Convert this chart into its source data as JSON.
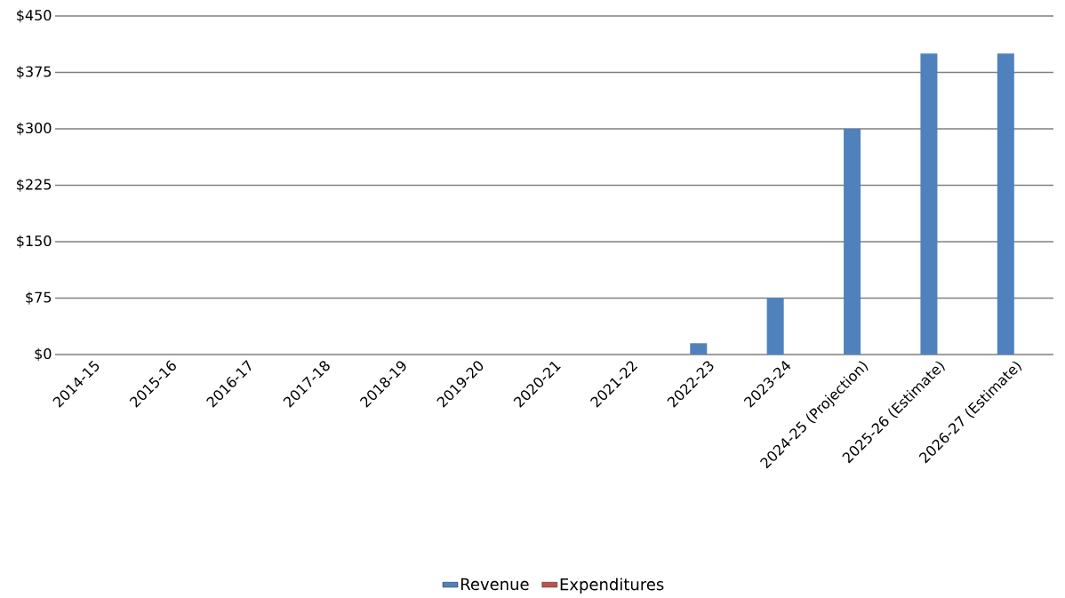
{
  "chart_data": {
    "type": "bar",
    "categories": [
      "2014-15",
      "2015-16",
      "2016-17",
      "2017-18",
      "2018-19",
      "2019-20",
      "2020-21",
      "2021-22",
      "2022-23",
      "2023-24",
      "2024-25 (Projection)",
      "2025-26 (Estimate)",
      "2026-27 (Estimate)"
    ],
    "series": [
      {
        "name": "Revenue",
        "color": "#4f81bd",
        "values": [
          0,
          0,
          0,
          0,
          0,
          0,
          0,
          0,
          15,
          75,
          300,
          400,
          400
        ]
      },
      {
        "name": "Expenditures",
        "color": "#c0504d",
        "values": [
          0,
          0,
          0,
          0,
          0,
          0,
          0,
          0,
          0,
          0,
          0,
          0,
          0
        ]
      }
    ],
    "ylim": [
      0,
      450
    ],
    "yticks": [
      {
        "value": 0,
        "label": "$0"
      },
      {
        "value": 75,
        "label": "$75"
      },
      {
        "value": 150,
        "label": "$150"
      },
      {
        "value": 225,
        "label": "$225"
      },
      {
        "value": 300,
        "label": "$300"
      },
      {
        "value": 375,
        "label": "$375"
      },
      {
        "value": 450,
        "label": "$450"
      }
    ],
    "grid": "y",
    "legend": "bottom"
  }
}
